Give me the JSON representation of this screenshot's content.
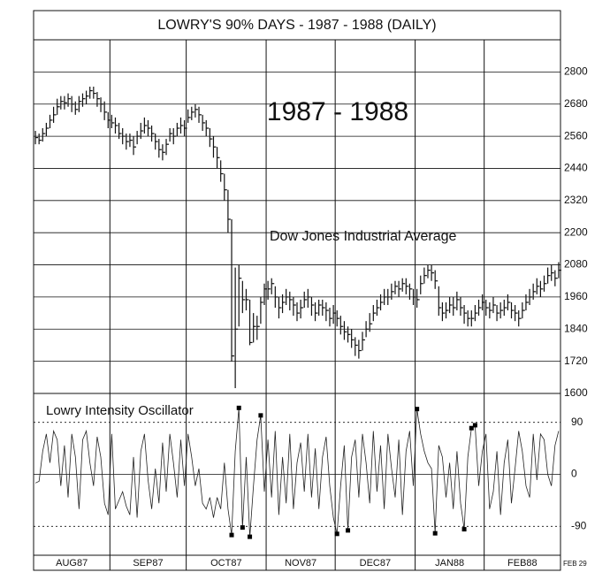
{
  "chart_data": [
    {
      "type": "ohlc",
      "title": "LOWRY'S 90% DAYS - 1987 - 1988 (DAILY)",
      "annotations": [
        "1987 - 1988",
        "Dow Jones Industrial Average"
      ],
      "end_label": "FEB 29",
      "color": "#111111",
      "ylim": [
        1600,
        2920
      ],
      "yticks": [
        1600,
        1720,
        1840,
        1960,
        2080,
        2200,
        2320,
        2440,
        2560,
        2680,
        2800
      ],
      "grid": true,
      "months": [
        {
          "label": "AUG87",
          "high": [
            2580,
            2570,
            2590,
            2610,
            2640,
            2670,
            2700,
            2710,
            2710,
            2720,
            2710,
            2690,
            2710,
            2720,
            2730,
            2745,
            2745,
            2725,
            2705,
            2690,
            2650
          ],
          "low": [
            2530,
            2530,
            2540,
            2560,
            2590,
            2610,
            2640,
            2660,
            2660,
            2670,
            2650,
            2640,
            2650,
            2670,
            2680,
            2700,
            2700,
            2670,
            2650,
            2620,
            2590
          ],
          "close": [
            2555,
            2545,
            2570,
            2590,
            2620,
            2640,
            2670,
            2690,
            2685,
            2700,
            2680,
            2660,
            2690,
            2700,
            2710,
            2730,
            2720,
            2700,
            2680,
            2650,
            2620
          ]
        },
        {
          "label": "SEP87",
          "high": [
            2640,
            2630,
            2610,
            2590,
            2570,
            2570,
            2560,
            2580,
            2610,
            2630,
            2620,
            2600,
            2570,
            2550,
            2530,
            2550,
            2590,
            2590,
            2610,
            2630,
            2620
          ],
          "low": [
            2590,
            2570,
            2550,
            2530,
            2510,
            2520,
            2490,
            2530,
            2550,
            2570,
            2560,
            2540,
            2510,
            2480,
            2470,
            2490,
            2540,
            2530,
            2560,
            2570,
            2560
          ],
          "close": [
            2610,
            2600,
            2570,
            2560,
            2540,
            2545,
            2520,
            2560,
            2580,
            2600,
            2590,
            2570,
            2540,
            2510,
            2500,
            2530,
            2570,
            2560,
            2590,
            2600,
            2590
          ]
        },
        {
          "label": "OCT87",
          "high": [
            2660,
            2670,
            2680,
            2670,
            2640,
            2620,
            2590,
            2560,
            2520,
            2470,
            2420,
            2360,
            2250,
            2070,
            2080,
            2020,
            1990,
            1950,
            1900,
            1890,
            1960,
            2010
          ],
          "low": [
            2610,
            2620,
            2630,
            2610,
            2580,
            2560,
            2520,
            2480,
            2440,
            2390,
            2320,
            2200,
            1720,
            1620,
            1850,
            1900,
            1910,
            1780,
            1790,
            1800,
            1860,
            1930
          ],
          "close": [
            2630,
            2650,
            2660,
            2640,
            2610,
            2590,
            2550,
            2520,
            2480,
            2420,
            2360,
            2250,
            1740,
            1840,
            2030,
            1950,
            1950,
            1790,
            1850,
            1850,
            1940,
            1990
          ]
        },
        {
          "label": "NOV87",
          "high": [
            2020,
            2030,
            2000,
            1960,
            1970,
            1990,
            1980,
            1960,
            1940,
            1950,
            1980,
            1990,
            1960,
            1940,
            1950,
            1950,
            1940,
            1920,
            1930
          ],
          "low": [
            1950,
            1970,
            1920,
            1880,
            1900,
            1930,
            1910,
            1890,
            1870,
            1880,
            1920,
            1920,
            1890,
            1870,
            1890,
            1890,
            1870,
            1850,
            1860
          ],
          "close": [
            1990,
            2010,
            1960,
            1920,
            1940,
            1960,
            1950,
            1930,
            1900,
            1920,
            1950,
            1960,
            1930,
            1900,
            1930,
            1920,
            1910,
            1880,
            1900
          ]
        },
        {
          "label": "DEC87",
          "high": [
            1910,
            1890,
            1870,
            1850,
            1840,
            1810,
            1800,
            1830,
            1870,
            1900,
            1930,
            1950,
            1970,
            1990,
            1990,
            2010,
            2020,
            2020,
            2030,
            2030,
            2010,
            1990
          ],
          "low": [
            1850,
            1820,
            1800,
            1790,
            1770,
            1740,
            1730,
            1760,
            1810,
            1830,
            1870,
            1890,
            1910,
            1930,
            1930,
            1950,
            1970,
            1960,
            1980,
            1970,
            1950,
            1930
          ],
          "close": [
            1880,
            1850,
            1830,
            1820,
            1800,
            1780,
            1760,
            1800,
            1840,
            1860,
            1900,
            1920,
            1940,
            1960,
            1960,
            1980,
            2000,
            1990,
            2010,
            2000,
            1990,
            1960
          ]
        },
        {
          "label": "JAN88",
          "high": [
            1990,
            2040,
            2070,
            2080,
            2080,
            2060,
            2000,
            1940,
            1940,
            1960,
            1960,
            1980,
            1960,
            1930,
            1910,
            1910,
            1930,
            1950,
            1970
          ],
          "low": [
            1920,
            1970,
            2010,
            2030,
            2020,
            1990,
            1890,
            1870,
            1880,
            1900,
            1890,
            1910,
            1890,
            1860,
            1850,
            1850,
            1870,
            1890,
            1910
          ],
          "close": [
            1950,
            2010,
            2040,
            2060,
            2050,
            2020,
            1920,
            1900,
            1910,
            1930,
            1920,
            1950,
            1920,
            1900,
            1880,
            1880,
            1900,
            1920,
            1940
          ]
        },
        {
          "label": "FEB88",
          "high": [
            1950,
            1940,
            1960,
            1930,
            1940,
            1950,
            1970,
            1940,
            1930,
            1910,
            1940,
            1970,
            1990,
            2010,
            2030,
            2020,
            2040,
            2070,
            2080,
            2060,
            2090
          ],
          "low": [
            1890,
            1880,
            1900,
            1870,
            1880,
            1890,
            1910,
            1880,
            1870,
            1850,
            1880,
            1910,
            1930,
            1950,
            1970,
            1960,
            1980,
            2010,
            2020,
            2000,
            2030
          ],
          "close": [
            1920,
            1910,
            1930,
            1900,
            1910,
            1920,
            1940,
            1910,
            1900,
            1880,
            1910,
            1940,
            1960,
            1980,
            2000,
            1990,
            2010,
            2040,
            2050,
            2030,
            2060
          ]
        }
      ]
    },
    {
      "type": "line",
      "title": "Lowry Intensity Oscillator",
      "color": "#222222",
      "ylim": [
        -140,
        140
      ],
      "yticks": [
        -90,
        0,
        90
      ],
      "months": [
        {
          "values": [
            -15,
            -12,
            40,
            70,
            20,
            75,
            60,
            -20,
            50,
            -40,
            70,
            30,
            -60,
            60,
            75,
            20,
            -20,
            65,
            30,
            -50,
            -70
          ]
        },
        {
          "values": [
            70,
            -60,
            -45,
            -30,
            -55,
            -70,
            30,
            -75,
            40,
            70,
            -10,
            -60,
            10,
            -50,
            55,
            -30,
            70,
            20,
            -40,
            60,
            -20
          ]
        },
        {
          "values": [
            70,
            30,
            -20,
            10,
            -50,
            -60,
            -40,
            -75,
            -40,
            -60,
            20,
            -60,
            -105,
            40,
            115,
            -92,
            30,
            -108,
            -20,
            60,
            102,
            -30
          ]
        },
        {
          "values": [
            60,
            -40,
            75,
            -70,
            30,
            -50,
            70,
            -60,
            20,
            55,
            -30,
            70,
            -40,
            45,
            -60,
            30,
            65,
            -20,
            -75
          ]
        },
        {
          "values": [
            -103,
            -20,
            50,
            -97,
            30,
            60,
            -40,
            70,
            20,
            -50,
            75,
            -30,
            50,
            -60,
            70,
            10,
            -40,
            60,
            -70,
            40,
            75,
            -20
          ]
        },
        {
          "values": [
            113,
            70,
            40,
            20,
            10,
            -102,
            50,
            30,
            -40,
            20,
            -60,
            40,
            -50,
            -95,
            30,
            80,
            85,
            -20,
            40
          ]
        },
        {
          "values": [
            70,
            -60,
            -30,
            40,
            -70,
            20,
            60,
            -50,
            10,
            75,
            40,
            -20,
            -40,
            70,
            -10,
            70,
            60,
            0,
            -20,
            50,
            75
          ]
        }
      ]
    }
  ]
}
